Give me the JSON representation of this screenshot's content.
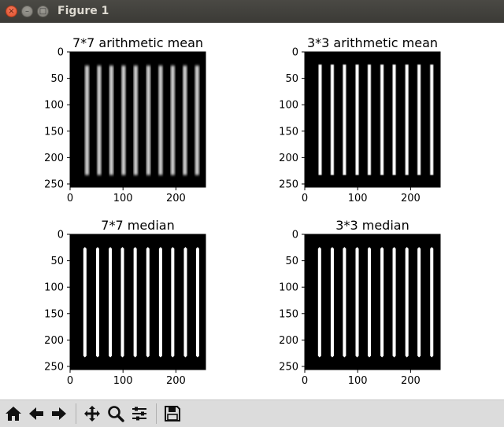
{
  "window": {
    "title": "Figure 1",
    "close_glyph": "×",
    "minimize_glyph": "–",
    "maximize_glyph": "□"
  },
  "toolbar": {
    "buttons": [
      {
        "icon": "home-icon",
        "tooltip": "Reset original view"
      },
      {
        "icon": "back-arrow-icon",
        "tooltip": "Back to previous view"
      },
      {
        "icon": "forward-arrow-icon",
        "tooltip": "Forward to next view"
      },
      {
        "icon": "pan-icon",
        "tooltip": "Pan axes"
      },
      {
        "icon": "zoom-icon",
        "tooltip": "Zoom to rectangle"
      },
      {
        "icon": "subplots-icon",
        "tooltip": "Configure subplots"
      },
      {
        "icon": "save-icon",
        "tooltip": "Save the figure"
      }
    ]
  },
  "chart_data": [
    {
      "type": "heatmap",
      "title": "7*7 arithmetic mean",
      "xlabel": "",
      "ylabel": "",
      "xlim": [
        0,
        256
      ],
      "ylim": [
        256,
        0
      ],
      "xticks": [
        0,
        100,
        200
      ],
      "xtick_labels": [
        "0",
        "100",
        "200"
      ],
      "yticks": [
        0,
        50,
        100,
        150,
        200,
        250
      ],
      "ytick_labels": [
        "0",
        "50",
        "100",
        "150",
        "200",
        "250"
      ],
      "background": "#000000",
      "filter": "mean",
      "blur": "strong",
      "stripes": {
        "x_centers": [
          32,
          55,
          78,
          101,
          124,
          148,
          171,
          194,
          217,
          240
        ],
        "width": 7,
        "y_start": 26,
        "y_end": 233
      }
    },
    {
      "type": "heatmap",
      "title": "3*3 arithmetic mean",
      "xlabel": "",
      "ylabel": "",
      "xlim": [
        0,
        256
      ],
      "ylim": [
        256,
        0
      ],
      "xticks": [
        0,
        100,
        200
      ],
      "xtick_labels": [
        "0",
        "100",
        "200"
      ],
      "yticks": [
        0,
        50,
        100,
        150,
        200,
        250
      ],
      "ytick_labels": [
        "0",
        "50",
        "100",
        "150",
        "200",
        "250"
      ],
      "background": "#000000",
      "filter": "mean",
      "blur": "light",
      "stripes": {
        "x_centers": [
          29,
          52,
          75,
          99,
          122,
          146,
          169,
          193,
          216,
          240
        ],
        "width": 6,
        "y_start": 24,
        "y_end": 233
      }
    },
    {
      "type": "heatmap",
      "title": "7*7 median",
      "xlabel": "",
      "ylabel": "",
      "xlim": [
        0,
        256
      ],
      "ylim": [
        256,
        0
      ],
      "xticks": [
        0,
        100,
        200
      ],
      "xtick_labels": [
        "0",
        "100",
        "200"
      ],
      "yticks": [
        0,
        50,
        100,
        150,
        200,
        250
      ],
      "ytick_labels": [
        "0",
        "50",
        "100",
        "150",
        "200",
        "250"
      ],
      "background": "#000000",
      "filter": "median",
      "stripes": {
        "x_centers": [
          28,
          52,
          76,
          99,
          123,
          147,
          171,
          194,
          218,
          241
        ],
        "width": 6,
        "y_start": 24,
        "y_end": 233
      }
    },
    {
      "type": "heatmap",
      "title": "3*3 median",
      "xlabel": "",
      "ylabel": "",
      "xlim": [
        0,
        256
      ],
      "ylim": [
        256,
        0
      ],
      "xticks": [
        0,
        100,
        200
      ],
      "xtick_labels": [
        "0",
        "100",
        "200"
      ],
      "yticks": [
        0,
        50,
        100,
        150,
        200,
        250
      ],
      "ytick_labels": [
        "0",
        "50",
        "100",
        "150",
        "200",
        "250"
      ],
      "background": "#000000",
      "filter": "median",
      "stripes": {
        "x_centers": [
          28,
          52,
          75,
          99,
          122,
          146,
          169,
          193,
          216,
          240
        ],
        "width": 6,
        "y_start": 24,
        "y_end": 233
      }
    }
  ]
}
